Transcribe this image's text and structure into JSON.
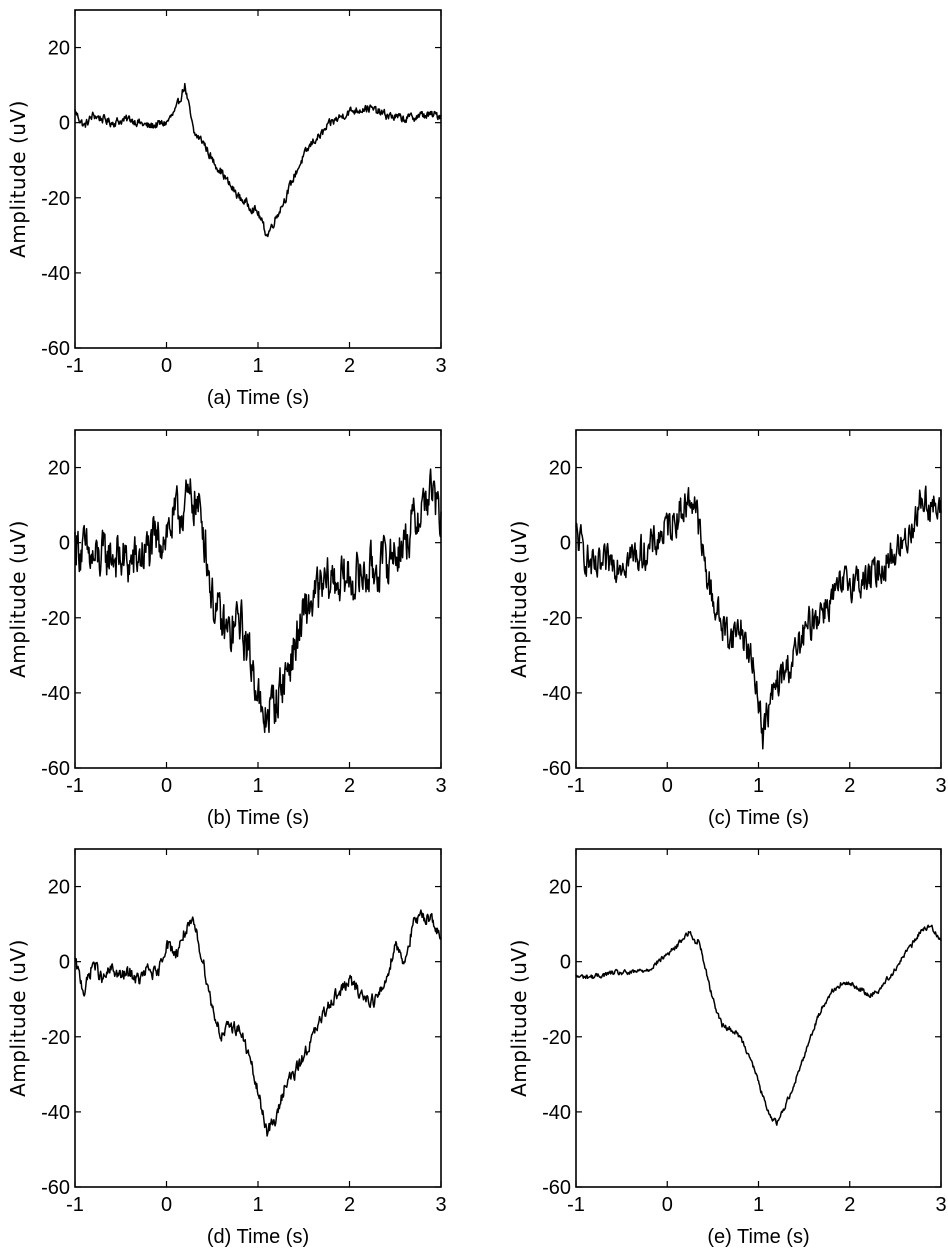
{
  "chart_data": [
    {
      "type": "line",
      "panel": "a",
      "xlabel": "(a)  Time (s)",
      "ylabel": "Amplitude (uV)",
      "xlim": [
        -1,
        3
      ],
      "ylim": [
        -60,
        30
      ],
      "xticks": [
        -1,
        0,
        1,
        2,
        3
      ],
      "yticks": [
        20,
        0,
        -20,
        -40,
        -60
      ],
      "noise": 1.0,
      "series": [
        {
          "x": [
            -1,
            -0.9,
            -0.8,
            -0.6,
            -0.4,
            -0.2,
            0,
            0.1,
            0.2,
            0.3,
            0.4,
            0.5,
            0.6,
            0.7,
            0.8,
            0.9,
            1.0,
            1.1,
            1.2,
            1.3,
            1.4,
            1.5,
            1.6,
            1.7,
            1.8,
            2.0,
            2.2,
            2.4,
            2.6,
            2.8,
            3.0
          ],
          "y": [
            3,
            -1,
            2,
            0,
            1,
            -1,
            0,
            3,
            10,
            -3,
            -5,
            -10,
            -13,
            -17,
            -20,
            -22,
            -24,
            -30,
            -25,
            -20,
            -14,
            -9,
            -5,
            -3,
            0,
            3,
            4,
            2,
            1,
            2,
            2
          ]
        }
      ]
    },
    {
      "type": "line",
      "panel": "b",
      "xlabel": "(b)  Time (s)",
      "ylabel": "Amplitude (uV)",
      "xlim": [
        -1,
        3
      ],
      "ylim": [
        -60,
        30
      ],
      "xticks": [
        -1,
        0,
        1,
        2,
        3
      ],
      "yticks": [
        20,
        0,
        -20,
        -40,
        -60
      ],
      "noise": 5.5,
      "series": [
        {
          "x": [
            -1,
            -0.8,
            -0.6,
            -0.4,
            -0.2,
            0,
            0.2,
            0.3,
            0.4,
            0.5,
            0.6,
            0.7,
            0.8,
            0.9,
            1.0,
            1.05,
            1.1,
            1.2,
            1.3,
            1.4,
            1.5,
            1.6,
            1.8,
            2.0,
            2.2,
            2.4,
            2.6,
            2.8,
            2.9,
            3.0
          ],
          "y": [
            0,
            -5,
            -3,
            -6,
            -2,
            3,
            10,
            12,
            5,
            -15,
            -22,
            -25,
            -20,
            -30,
            -38,
            -50,
            -45,
            -42,
            -35,
            -28,
            -20,
            -15,
            -10,
            -10,
            -8,
            -5,
            0,
            10,
            14,
            5
          ]
        }
      ]
    },
    {
      "type": "line",
      "panel": "c",
      "xlabel": "(c)  Time (s)",
      "ylabel": "Amplitude (uV)",
      "xlim": [
        -1,
        3
      ],
      "ylim": [
        -60,
        30
      ],
      "xticks": [
        -1,
        0,
        1,
        2,
        3
      ],
      "yticks": [
        20,
        0,
        -20,
        -40,
        -60
      ],
      "noise": 4.0,
      "series": [
        {
          "x": [
            -1,
            -0.8,
            -0.6,
            -0.4,
            -0.2,
            0,
            0.2,
            0.3,
            0.4,
            0.5,
            0.6,
            0.7,
            0.8,
            0.9,
            1.0,
            1.05,
            1.1,
            1.2,
            1.4,
            1.5,
            1.6,
            1.8,
            2.0,
            2.2,
            2.4,
            2.6,
            2.8,
            2.9,
            3.0
          ],
          "y": [
            2,
            -8,
            -5,
            -4,
            -2,
            4,
            10,
            12,
            -5,
            -15,
            -22,
            -25,
            -22,
            -30,
            -40,
            -52,
            -45,
            -38,
            -30,
            -25,
            -20,
            -15,
            -10,
            -10,
            -5,
            0,
            12,
            10,
            7
          ]
        }
      ]
    },
    {
      "type": "line",
      "panel": "d",
      "xlabel": "(d)  Time (s)",
      "ylabel": "Amplitude (uV)",
      "xlim": [
        -1,
        3
      ],
      "ylim": [
        -60,
        30
      ],
      "xticks": [
        -1,
        0,
        1,
        2,
        3
      ],
      "yticks": [
        20,
        0,
        -20,
        -40,
        -60
      ],
      "noise": 1.5,
      "series": [
        {
          "x": [
            -1,
            -0.9,
            -0.8,
            -0.7,
            -0.6,
            -0.5,
            -0.4,
            -0.3,
            -0.2,
            -0.1,
            0,
            0.1,
            0.2,
            0.3,
            0.4,
            0.5,
            0.6,
            0.7,
            0.8,
            0.9,
            1.0,
            1.1,
            1.2,
            1.3,
            1.4,
            1.5,
            1.6,
            1.7,
            1.8,
            1.9,
            2.0,
            2.1,
            2.2,
            2.3,
            2.4,
            2.5,
            2.6,
            2.7,
            2.8,
            2.9,
            3.0
          ],
          "y": [
            0,
            -8,
            0,
            -5,
            -2,
            -4,
            -3,
            -5,
            -2,
            -4,
            5,
            2,
            8,
            10,
            0,
            -12,
            -20,
            -17,
            -18,
            -25,
            -35,
            -45,
            -42,
            -32,
            -30,
            -25,
            -20,
            -15,
            -10,
            -8,
            -5,
            -8,
            -10,
            -10,
            -5,
            5,
            0,
            10,
            12,
            12,
            5
          ]
        }
      ]
    },
    {
      "type": "line",
      "panel": "e",
      "xlabel": "(e)  Time (s)",
      "ylabel": "Amplitude (uV)",
      "xlim": [
        -1,
        3
      ],
      "ylim": [
        -60,
        30
      ],
      "xticks": [
        -1,
        0,
        1,
        2,
        3
      ],
      "yticks": [
        20,
        0,
        -20,
        -40,
        -60
      ],
      "noise": 0.6,
      "series": [
        {
          "x": [
            -1,
            -0.8,
            -0.6,
            -0.4,
            -0.2,
            0,
            0.1,
            0.2,
            0.25,
            0.3,
            0.35,
            0.4,
            0.5,
            0.6,
            0.7,
            0.8,
            0.9,
            1.0,
            1.1,
            1.2,
            1.3,
            1.4,
            1.5,
            1.6,
            1.7,
            1.8,
            1.9,
            2.0,
            2.1,
            2.2,
            2.3,
            2.4,
            2.5,
            2.6,
            2.7,
            2.8,
            2.9,
            3.0
          ],
          "y": [
            -4,
            -4,
            -3,
            -3,
            -2,
            2,
            4,
            7,
            8,
            5,
            6,
            0,
            -10,
            -17,
            -18,
            -20,
            -25,
            -32,
            -40,
            -43,
            -38,
            -32,
            -25,
            -18,
            -12,
            -8,
            -6,
            -6,
            -7,
            -9,
            -8,
            -5,
            -2,
            2,
            5,
            9,
            9,
            6
          ]
        }
      ]
    }
  ]
}
